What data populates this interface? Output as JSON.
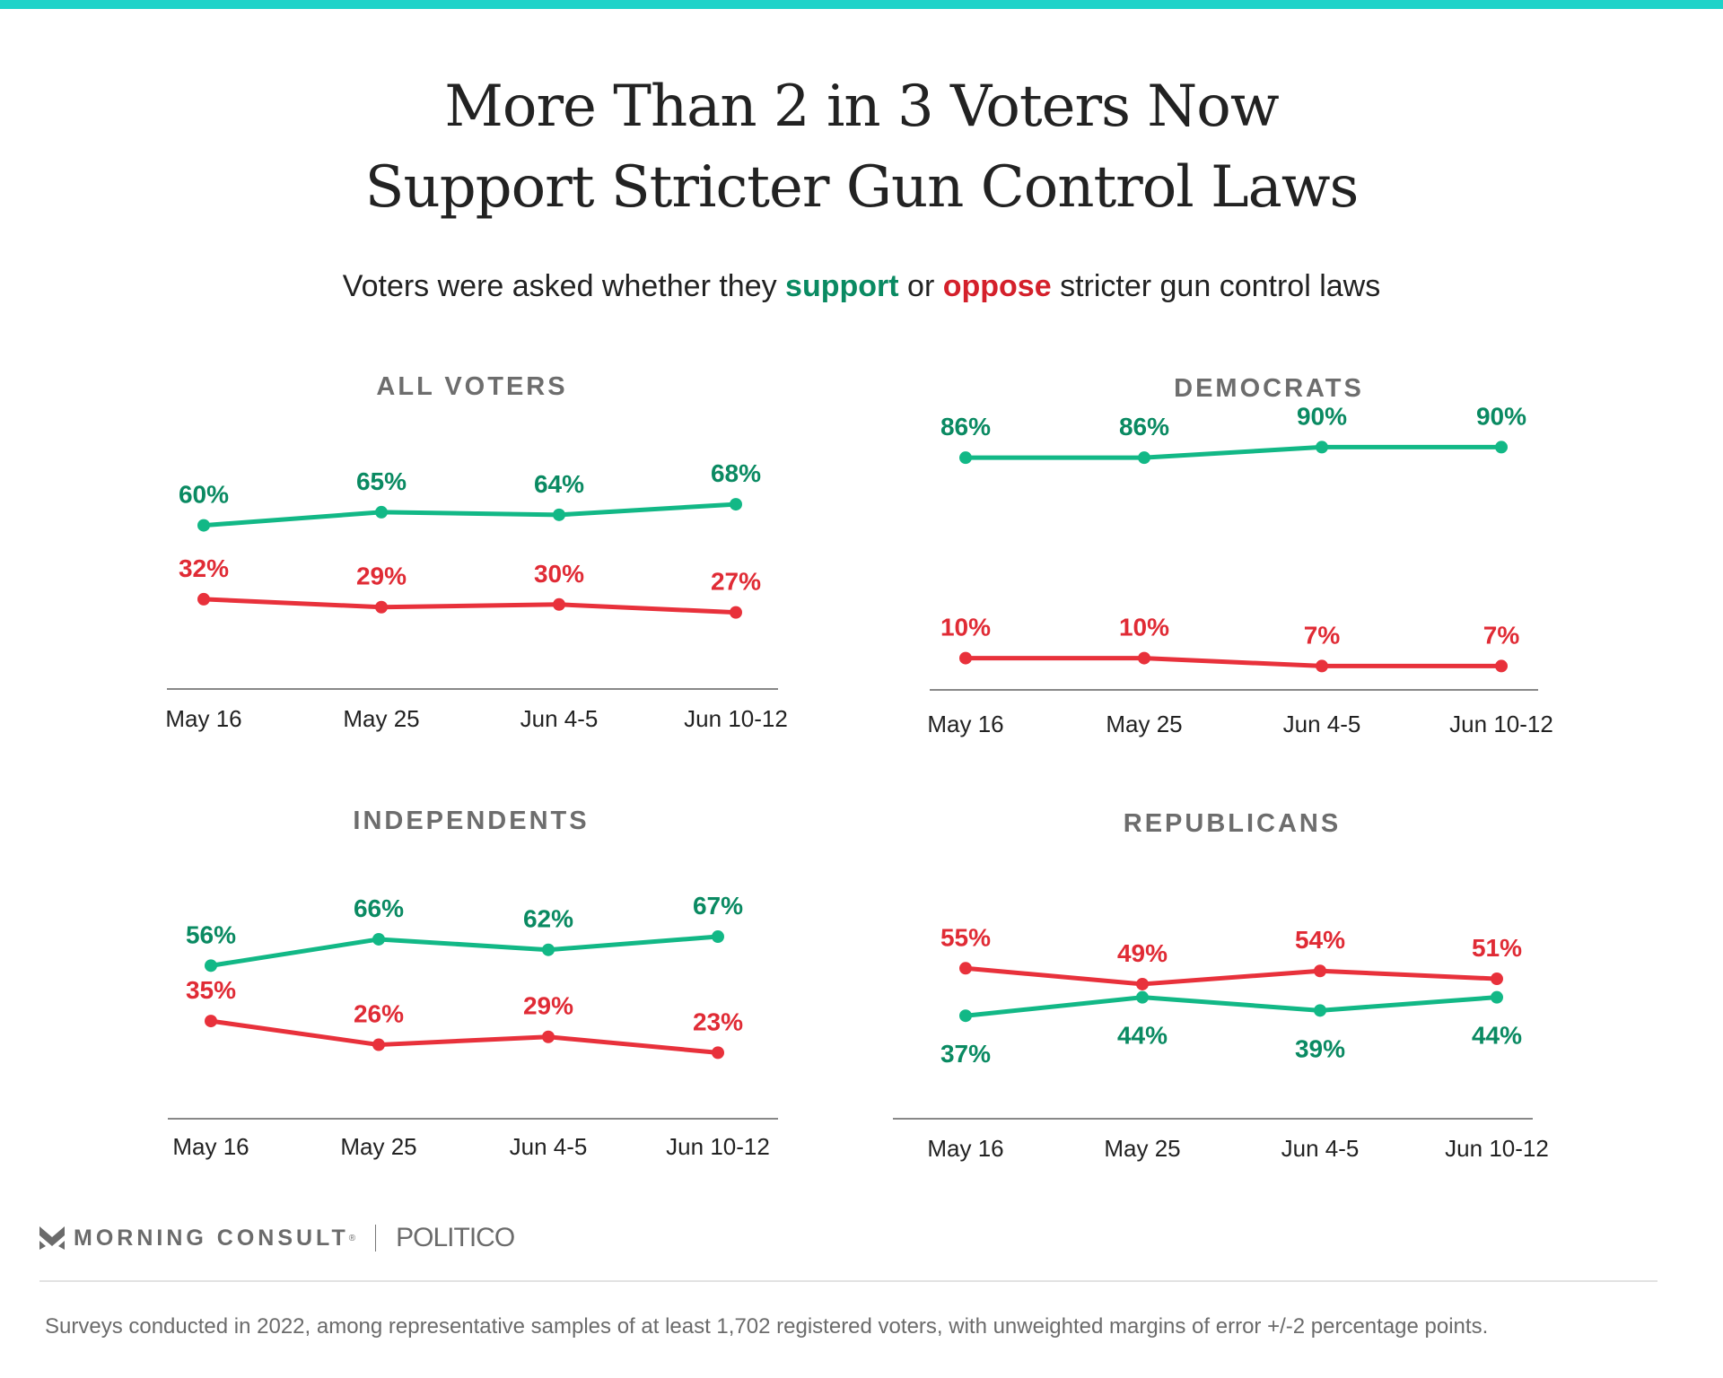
{
  "header": {
    "title_line1": "More Than 2 in 3 Voters Now",
    "title_line2": "Support Stricter Gun Control Laws",
    "subtitle_pre": "Voters were asked whether they ",
    "subtitle_support": "support",
    "subtitle_mid": " or ",
    "subtitle_oppose": "oppose",
    "subtitle_post": " stricter gun control laws"
  },
  "colors": {
    "accent_bar": "#1fd3c9",
    "support_line": "#12b886",
    "support_label": "#0a8a62",
    "oppose_line": "#e8313b",
    "oppose_label": "#e02b35"
  },
  "chart_data": [
    {
      "type": "line",
      "title": "ALL VOTERS",
      "categories": [
        "May 16",
        "May 25",
        "Jun 4-5",
        "Jun 10-12"
      ],
      "series": [
        {
          "name": "support",
          "values": [
            60,
            65,
            64,
            68
          ]
        },
        {
          "name": "oppose",
          "values": [
            32,
            29,
            30,
            27
          ]
        }
      ]
    },
    {
      "type": "line",
      "title": "DEMOCRATS",
      "categories": [
        "May 16",
        "May 25",
        "Jun 4-5",
        "Jun 10-12"
      ],
      "series": [
        {
          "name": "support",
          "values": [
            86,
            86,
            90,
            90
          ]
        },
        {
          "name": "oppose",
          "values": [
            10,
            10,
            7,
            7
          ]
        }
      ]
    },
    {
      "type": "line",
      "title": "INDEPENDENTS",
      "categories": [
        "May 16",
        "May 25",
        "Jun 4-5",
        "Jun 10-12"
      ],
      "series": [
        {
          "name": "support",
          "values": [
            56,
            66,
            62,
            67
          ]
        },
        {
          "name": "oppose",
          "values": [
            35,
            26,
            29,
            23
          ]
        }
      ]
    },
    {
      "type": "line",
      "title": "REPUBLICANS",
      "categories": [
        "May 16",
        "May 25",
        "Jun 4-5",
        "Jun 10-12"
      ],
      "series": [
        {
          "name": "support",
          "values": [
            37,
            44,
            39,
            44
          ]
        },
        {
          "name": "oppose",
          "values": [
            55,
            49,
            54,
            51
          ]
        }
      ]
    }
  ],
  "footer": {
    "logo_text": "MORNING CONSULT",
    "registered_mark": "®",
    "partner": "POLITICO",
    "note": "Surveys conducted in 2022, among representative samples of at least 1,702 registered voters, with unweighted margins of error +/-2 percentage points."
  }
}
